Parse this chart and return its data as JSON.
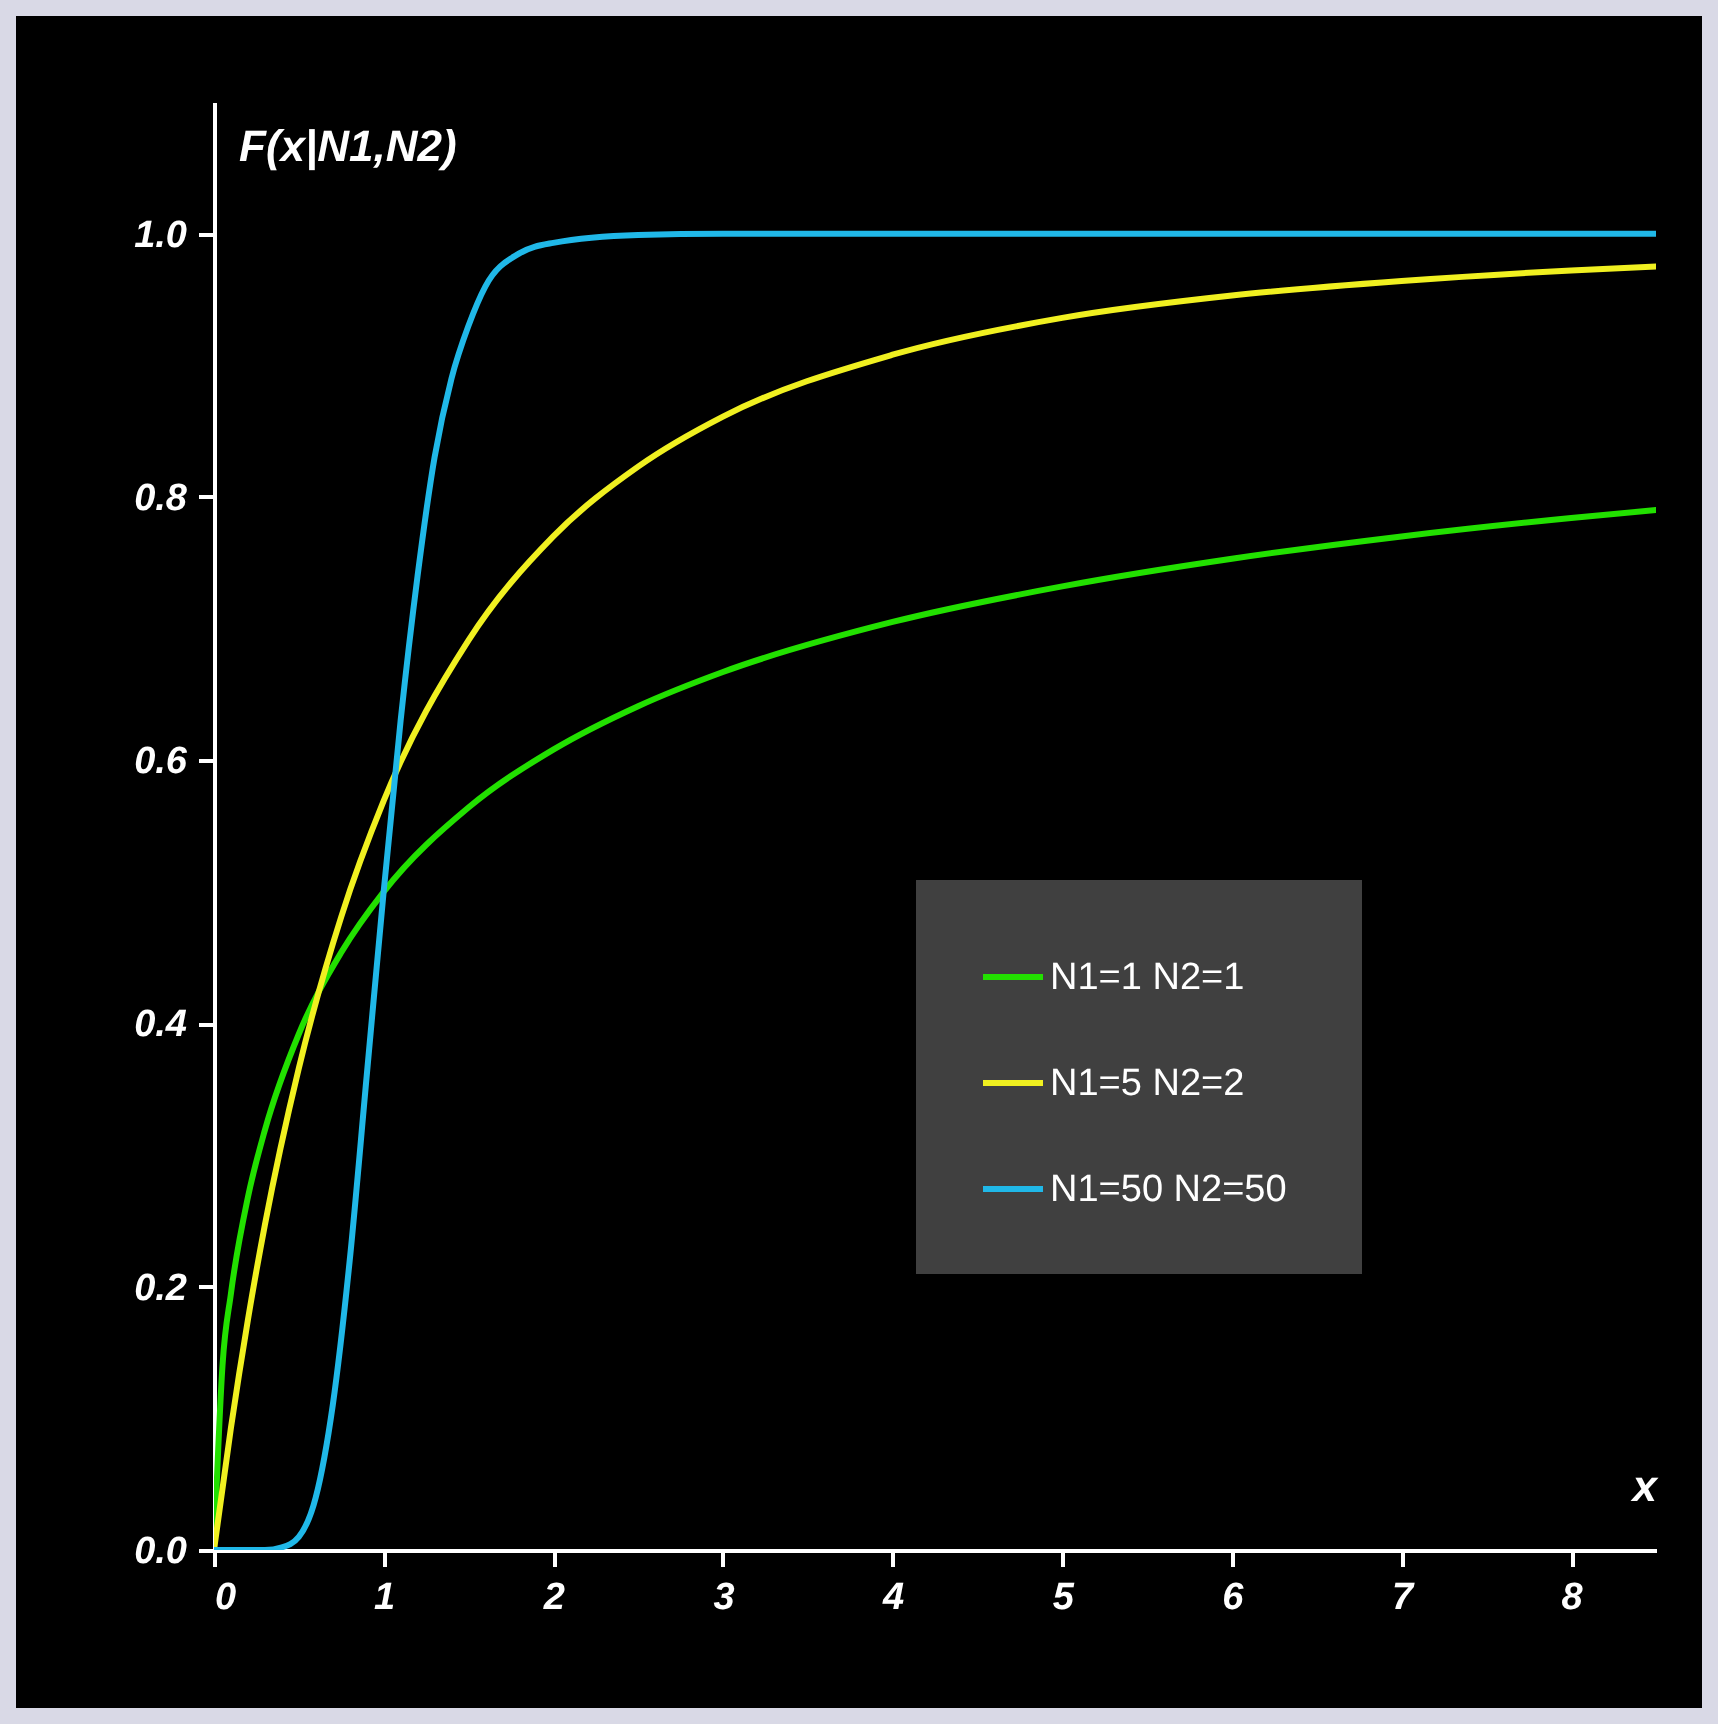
{
  "chart_data": {
    "type": "line",
    "xlabel": "x",
    "ylabel": "F(x|N1,N2)",
    "xlim": [
      0,
      8.5
    ],
    "ylim": [
      0,
      1.1
    ],
    "xticks": [
      0,
      1,
      2,
      3,
      4,
      5,
      6,
      7,
      8
    ],
    "yticks": [
      {
        "value": 0,
        "label": "0.0"
      },
      {
        "value": 0.2,
        "label": "0.2"
      },
      {
        "value": 0.4,
        "label": "0.4"
      },
      {
        "value": 0.6,
        "label": "0.6"
      },
      {
        "value": 0.8,
        "label": "0.8"
      },
      {
        "value": 1,
        "label": "1.0"
      }
    ],
    "legend": "right",
    "series": [
      {
        "name": "N1=1  N2=1",
        "color": "#22e000",
        "x": [
          0,
          0.05,
          0.1,
          0.2,
          0.3,
          0.5,
          0.75,
          1,
          1.5,
          2,
          2.5,
          3,
          4,
          5,
          6,
          7,
          8,
          8.5
        ],
        "values": [
          0,
          0.14,
          0.195,
          0.268,
          0.319,
          0.392,
          0.454,
          0.5,
          0.564,
          0.608,
          0.641,
          0.667,
          0.705,
          0.732,
          0.753,
          0.77,
          0.784,
          0.79
        ]
      },
      {
        "name": "N1=5  N2=2",
        "color": "#f0f020",
        "x": [
          0,
          0.1,
          0.2,
          0.3,
          0.5,
          0.75,
          1,
          1.5,
          2,
          2.5,
          3,
          4,
          5,
          6,
          7,
          8,
          8.5
        ],
        "values": [
          0,
          0.093,
          0.175,
          0.247,
          0.366,
          0.481,
          0.569,
          0.691,
          0.77,
          0.823,
          0.861,
          0.908,
          0.936,
          0.953,
          0.964,
          0.972,
          0.975
        ]
      },
      {
        "name": "N1=50  N2=50",
        "color": "#20b8e8",
        "x": [
          0,
          0.3,
          0.4,
          0.5,
          0.6,
          0.7,
          0.8,
          0.9,
          1,
          1.1,
          1.2,
          1.3,
          1.4,
          1.5,
          1.6,
          1.8,
          2,
          2.5,
          3,
          8.5
        ],
        "values": [
          0,
          0,
          0.002,
          0.01,
          0.04,
          0.11,
          0.22,
          0.36,
          0.5,
          0.63,
          0.74,
          0.83,
          0.89,
          0.93,
          0.96,
          0.985,
          0.993,
          0.999,
          1,
          1
        ]
      }
    ]
  }
}
